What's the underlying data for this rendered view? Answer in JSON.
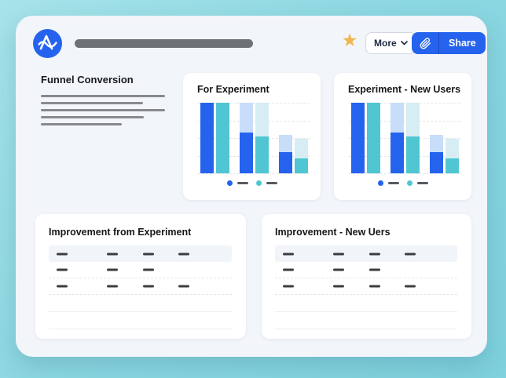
{
  "topbar": {
    "more_label": "More",
    "share_label": "Share"
  },
  "icons": {
    "logo": "amplitude-logo",
    "favorite": "star-icon",
    "share_link": "paperclip-icon",
    "more_dropdown": "chevron-down-icon"
  },
  "funnel": {
    "title": "Funnel Conversion",
    "line_widths": [
      158,
      130,
      158,
      131,
      103
    ]
  },
  "chart_data": [
    {
      "type": "bar",
      "variant": "grouped-stacked-placeholder",
      "title": "For Experiment",
      "categories": [
        "group-1",
        "group-2",
        "group-3"
      ],
      "series": [
        {
          "name": "series-blue",
          "color": "#2563ee",
          "faded_color": "#c7ddf9",
          "totals_pct": [
            100,
            100,
            54
          ],
          "solid_pct": [
            100,
            58,
            30
          ]
        },
        {
          "name": "series-teal",
          "color": "#4fc6d2",
          "faded_color": "#d6edf3",
          "totals_pct": [
            100,
            100,
            49
          ],
          "solid_pct": [
            100,
            52,
            21
          ]
        }
      ],
      "xlabel": "",
      "ylabel": "",
      "axis_tick_labels_visible": false,
      "gridlines": "horizontal-dashed",
      "legend_position": "bottom",
      "legend_labels": [
        "(placeholder dash)",
        "(placeholder dash)"
      ],
      "units": "percent of plot height (chart has no printed values)"
    },
    {
      "type": "bar",
      "variant": "grouped-stacked-placeholder",
      "title": "Experiment - New Users",
      "categories": [
        "group-1",
        "group-2",
        "group-3"
      ],
      "series": [
        {
          "name": "series-blue",
          "color": "#2563ee",
          "faded_color": "#c7ddf9",
          "totals_pct": [
            100,
            100,
            54
          ],
          "solid_pct": [
            100,
            58,
            30
          ]
        },
        {
          "name": "series-teal",
          "color": "#4fc6d2",
          "faded_color": "#d6edf3",
          "totals_pct": [
            100,
            100,
            49
          ],
          "solid_pct": [
            100,
            52,
            21
          ]
        }
      ],
      "xlabel": "",
      "ylabel": "",
      "axis_tick_labels_visible": false,
      "gridlines": "horizontal-dashed",
      "legend_position": "bottom",
      "legend_labels": [
        "(placeholder dash)",
        "(placeholder dash)"
      ],
      "units": "percent of plot height (chart has no printed values)"
    }
  ],
  "tables": [
    {
      "title": "Improvement from Experiment",
      "rows": [
        {
          "style": "header",
          "dash_offsets": [
            10,
            74,
            120,
            165
          ]
        },
        {
          "style": "data",
          "dash_offsets": [
            10,
            74,
            120
          ]
        },
        {
          "style": "data",
          "dash_offsets": [
            10,
            74,
            120,
            165
          ]
        },
        {
          "style": "empty",
          "dash_offsets": []
        },
        {
          "style": "empty",
          "dash_offsets": []
        }
      ]
    },
    {
      "title": "Improvement - New Uers",
      "rows": [
        {
          "style": "header",
          "dash_offsets": [
            10,
            74,
            120,
            165
          ]
        },
        {
          "style": "data",
          "dash_offsets": [
            10,
            74,
            120
          ]
        },
        {
          "style": "data",
          "dash_offsets": [
            10,
            74,
            120,
            165
          ]
        },
        {
          "style": "empty",
          "dash_offsets": []
        },
        {
          "style": "empty",
          "dash_offsets": []
        }
      ]
    }
  ],
  "colors": {
    "background_teal": "#8dd8e2",
    "card_background": "#f2f5fa",
    "panel_white": "#ffffff",
    "accent_blue": "#2563ee",
    "accent_teal": "#4fc6d2",
    "faded_blue": "#c7ddf9",
    "faded_teal": "#d6edf3",
    "star_gold": "#f0b54d",
    "placeholder_gray": "#6e7276",
    "dash_dark": "#3a3d42",
    "table_header_bg": "#f1f4f9"
  }
}
